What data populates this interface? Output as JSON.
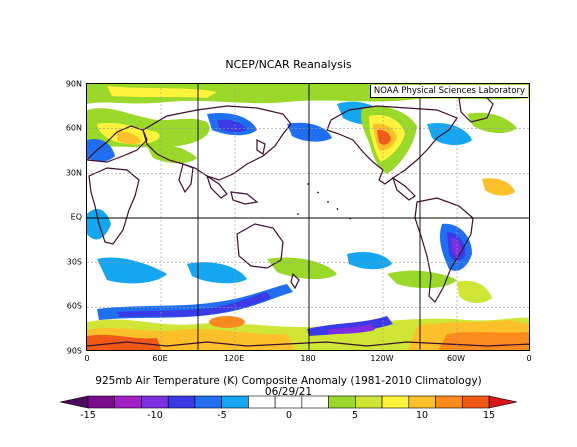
{
  "title": "NCEP/NCAR Reanalysis",
  "credit": "NOAA Physical Sciences Laboratory",
  "subtitle_line1": "925mb Air Temperature (K) Composite Anomaly (1981-2010 Climatology)",
  "subtitle_line2": "06/29/21",
  "lat_labels": [
    "90N",
    "60N",
    "30N",
    "EQ",
    "30S",
    "60S",
    "90S"
  ],
  "lon_labels": [
    "0",
    "60E",
    "120E",
    "180",
    "120W",
    "60W",
    "0"
  ],
  "colorbar": {
    "tick_labels": [
      "-15",
      "-10",
      "-5",
      "0",
      "5",
      "10",
      "15"
    ],
    "min": -15,
    "max": 15,
    "bins": [
      {
        "from": -15,
        "to": -13,
        "color": "#7a0c8e"
      },
      {
        "from": -13,
        "to": -11,
        "color": "#a21fc8"
      },
      {
        "from": -11,
        "to": -9,
        "color": "#7d2ee0"
      },
      {
        "from": -9,
        "to": -7,
        "color": "#3a3be6"
      },
      {
        "from": -7,
        "to": -5,
        "color": "#1f6ff0"
      },
      {
        "from": -5,
        "to": -3,
        "color": "#14a6f0"
      },
      {
        "from": -3,
        "to": -1,
        "color": "#ffffff"
      },
      {
        "from": -1,
        "to": 1,
        "color": "#ffffff"
      },
      {
        "from": 1,
        "to": 3,
        "color": "#ffffff"
      },
      {
        "from": 3,
        "to": 5,
        "color": "#9ad82a"
      },
      {
        "from": 5,
        "to": 7,
        "color": "#cfe637"
      },
      {
        "from": 7,
        "to": 9,
        "color": "#fff33b"
      },
      {
        "from": 9,
        "to": 11,
        "color": "#fcc02a"
      },
      {
        "from": 11,
        "to": 13,
        "color": "#fb8a1e"
      },
      {
        "from": 13,
        "to": 15,
        "color": "#f15a16"
      }
    ],
    "end_low_color": "#4b0a5c",
    "end_high_color": "#d7191c"
  }
}
